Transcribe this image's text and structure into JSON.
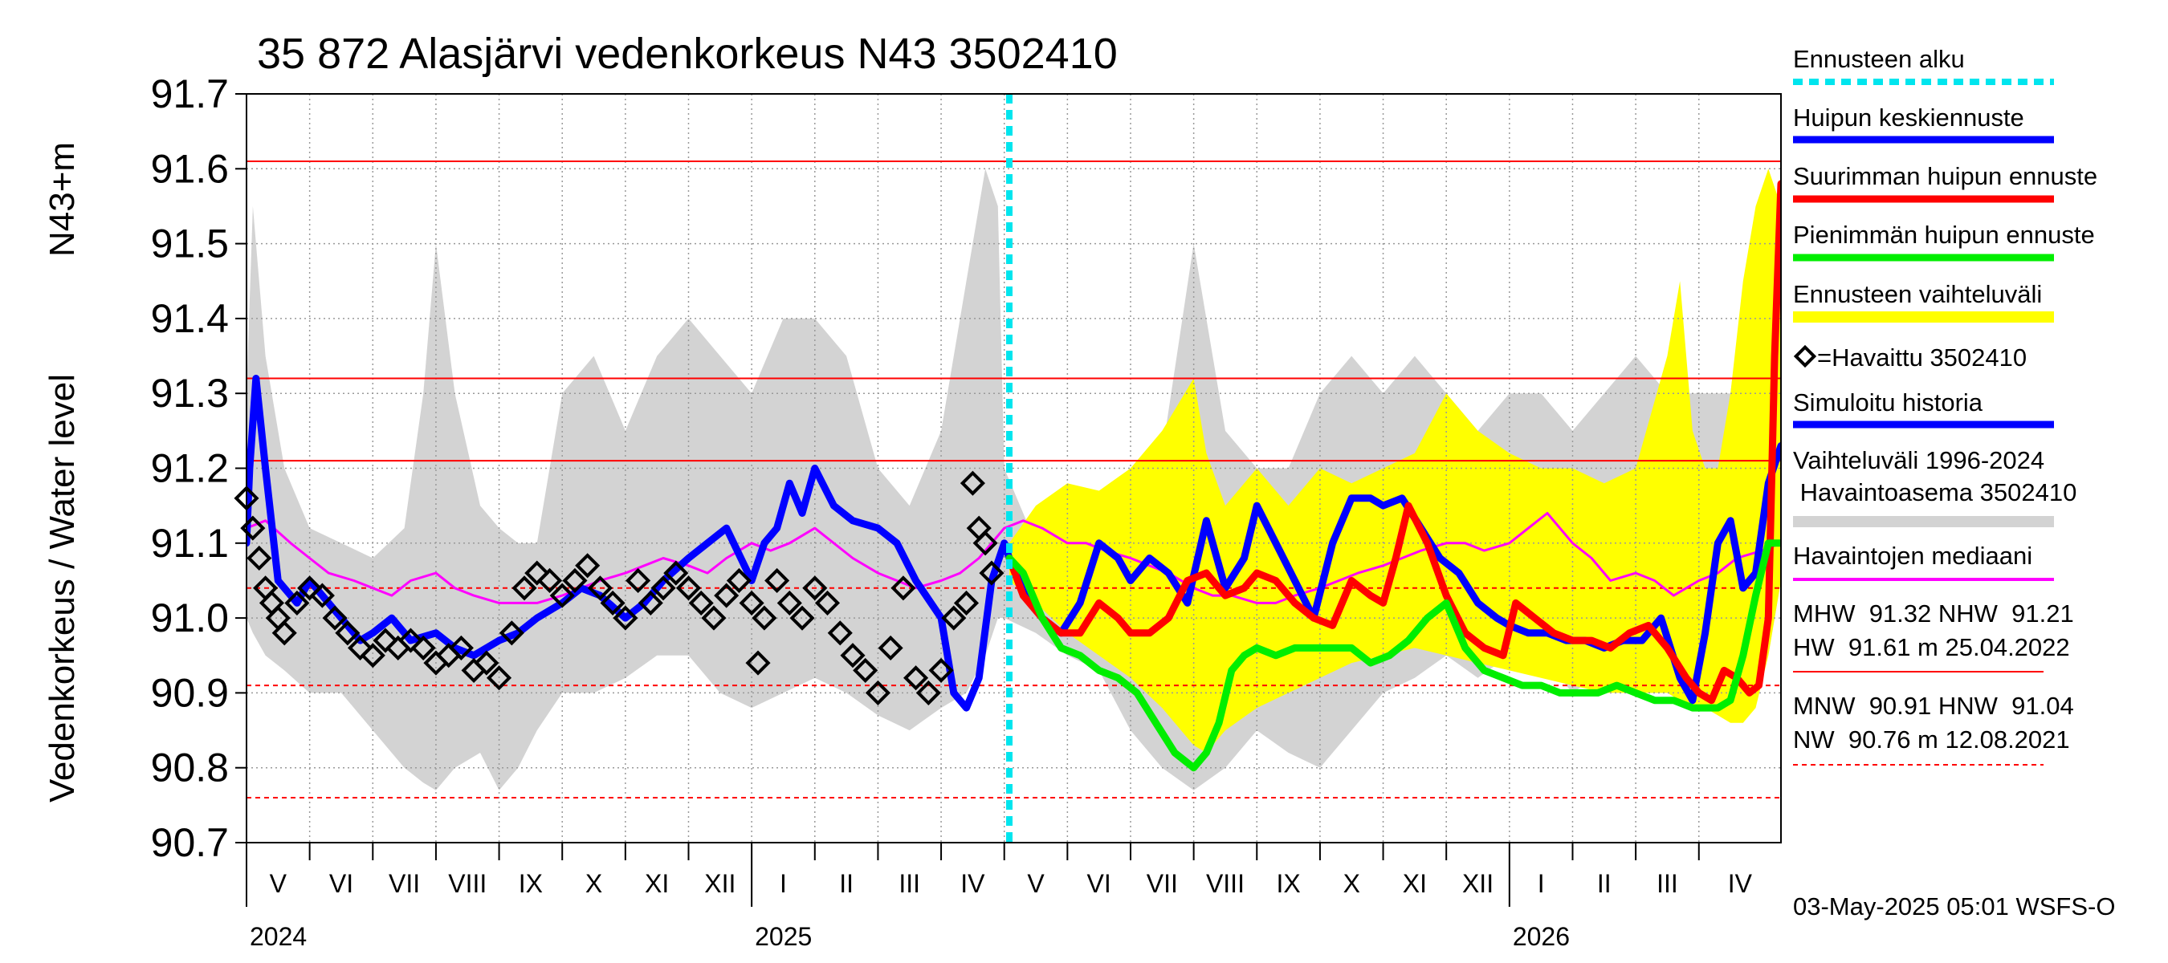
{
  "chart_data": {
    "type": "line",
    "title": "35 872 Alasjärvi vedenkorkeus N43 3502410",
    "ylabel_left": "Vedenkorkeus / Water level",
    "ylabel_right": "N43+m",
    "ylim": [
      90.7,
      91.7
    ],
    "y_ticks": [
      "91.7",
      "91.6",
      "91.5",
      "91.4",
      "91.3",
      "91.2",
      "91.1",
      "91.0",
      "90.9",
      "90.8",
      "90.7"
    ],
    "x_months": [
      {
        "label": "V",
        "start": 0
      },
      {
        "label": "VI",
        "start": 1
      },
      {
        "label": "VII",
        "start": 2
      },
      {
        "label": "VIII",
        "start": 3
      },
      {
        "label": "IX",
        "start": 4
      },
      {
        "label": "X",
        "start": 5
      },
      {
        "label": "XI",
        "start": 6
      },
      {
        "label": "XII",
        "start": 7
      },
      {
        "label": "I",
        "start": 8
      },
      {
        "label": "II",
        "start": 9
      },
      {
        "label": "III",
        "start": 10
      },
      {
        "label": "IV",
        "start": 11
      },
      {
        "label": "V",
        "start": 12
      },
      {
        "label": "VI",
        "start": 13
      },
      {
        "label": "VII",
        "start": 14
      },
      {
        "label": "VIII",
        "start": 15
      },
      {
        "label": "IX",
        "start": 16
      },
      {
        "label": "X",
        "start": 17
      },
      {
        "label": "XI",
        "start": 18
      },
      {
        "label": "XII",
        "start": 19
      },
      {
        "label": "I",
        "start": 20
      },
      {
        "label": "II",
        "start": 21
      },
      {
        "label": "III",
        "start": 22
      },
      {
        "label": "IV",
        "start": 23
      }
    ],
    "x_years": [
      {
        "label": "2024",
        "month": 0
      },
      {
        "label": "2025",
        "month": 8
      },
      {
        "label": "2026",
        "month": 20
      }
    ],
    "x_range_months": [
      0,
      24.3
    ],
    "forecast_start_month": 12.08,
    "reference_lines": [
      {
        "name": "HW",
        "value": 91.61,
        "style": "solid"
      },
      {
        "name": "MHW",
        "value": 91.32,
        "style": "solid"
      },
      {
        "name": "NHW",
        "value": 91.21,
        "style": "solid"
      },
      {
        "name": "HNW",
        "value": 91.04,
        "style": "dashed"
      },
      {
        "name": "MNW",
        "value": 90.91,
        "style": "dashed"
      },
      {
        "name": "NW",
        "value": 90.76,
        "style": "dashed"
      }
    ],
    "series": [
      {
        "name": "Vaihteluväli 1996-2024",
        "type": "band",
        "color": "#d3d3d3",
        "x": [
          0,
          0.1,
          0.3,
          0.6,
          1,
          1.5,
          2,
          2.5,
          2.8,
          3,
          3.3,
          3.7,
          4,
          4.3,
          4.6,
          5,
          5.5,
          6,
          6.5,
          7,
          7.5,
          8,
          8.5,
          9,
          9.5,
          10,
          10.5,
          11,
          11.4,
          11.7,
          11.9,
          12,
          12.5,
          13,
          13.5,
          14,
          14.5,
          15,
          15.5,
          16,
          16.5,
          17,
          17.5,
          18,
          18.5,
          19,
          19.5,
          20,
          20.5,
          21,
          21.5,
          22,
          22.5,
          23,
          23.5,
          23.8,
          24.1,
          24.3
        ],
        "upper": [
          91.3,
          91.55,
          91.35,
          91.2,
          91.12,
          91.1,
          91.08,
          91.12,
          91.3,
          91.5,
          91.3,
          91.15,
          91.12,
          91.1,
          91.1,
          91.3,
          91.35,
          91.25,
          91.35,
          91.4,
          91.35,
          91.3,
          91.4,
          91.4,
          91.35,
          91.2,
          91.15,
          91.25,
          91.45,
          91.6,
          91.55,
          91.2,
          91.1,
          91.1,
          91.1,
          91.15,
          91.22,
          91.5,
          91.25,
          91.2,
          91.2,
          91.3,
          91.35,
          91.3,
          91.35,
          91.3,
          91.25,
          91.3,
          91.3,
          91.25,
          91.3,
          91.35,
          91.3,
          91.3,
          91.3,
          91.5,
          91.6,
          91.4
        ],
        "lower": [
          91.0,
          90.98,
          90.95,
          90.93,
          90.9,
          90.9,
          90.85,
          90.8,
          90.78,
          90.77,
          90.8,
          90.82,
          90.77,
          90.8,
          90.85,
          90.9,
          90.9,
          90.92,
          90.95,
          90.95,
          90.9,
          90.88,
          90.9,
          90.92,
          90.9,
          90.87,
          90.85,
          90.88,
          90.9,
          90.95,
          91.0,
          91.0,
          90.98,
          90.95,
          90.93,
          90.85,
          90.8,
          90.77,
          90.8,
          90.85,
          90.82,
          90.8,
          90.85,
          90.9,
          90.92,
          90.95,
          90.92,
          90.95,
          90.95,
          90.9,
          90.93,
          90.9,
          90.9,
          90.88,
          90.87,
          90.88,
          90.95,
          91.05
        ]
      },
      {
        "name": "Ennusteen vaihteluväli",
        "type": "band",
        "color": "#ffff00",
        "x": [
          12.08,
          12.5,
          13,
          13.5,
          14,
          14.5,
          15,
          15.2,
          15.5,
          16,
          16.5,
          17,
          17.5,
          18,
          18.5,
          19,
          19.5,
          20,
          20.5,
          21,
          21.5,
          22,
          22.5,
          22.7,
          22.9,
          23.1,
          23.3,
          23.5,
          23.7,
          23.9,
          24.1,
          24.3
        ],
        "upper": [
          91.1,
          91.15,
          91.18,
          91.17,
          91.2,
          91.25,
          91.32,
          91.22,
          91.15,
          91.2,
          91.15,
          91.2,
          91.18,
          91.2,
          91.22,
          91.3,
          91.25,
          91.22,
          91.2,
          91.2,
          91.18,
          91.2,
          91.35,
          91.45,
          91.25,
          91.2,
          91.2,
          91.3,
          91.45,
          91.55,
          91.6,
          91.55
        ],
        "lower": [
          91.05,
          91.02,
          90.98,
          90.95,
          90.92,
          90.88,
          90.83,
          90.82,
          90.85,
          90.88,
          90.9,
          90.92,
          90.94,
          90.95,
          90.96,
          90.95,
          90.94,
          90.93,
          90.92,
          90.91,
          90.9,
          90.9,
          90.9,
          90.89,
          90.88,
          90.88,
          90.87,
          90.86,
          90.86,
          90.88,
          90.95,
          91.05
        ]
      },
      {
        "name": "Havaintojen mediaani",
        "type": "line",
        "color": "#ff00ff",
        "x": [
          0,
          0.3,
          0.7,
          1,
          1.3,
          1.7,
          2,
          2.3,
          2.6,
          3,
          3.3,
          3.6,
          4,
          4.3,
          4.6,
          5,
          5.3,
          5.6,
          6,
          6.3,
          6.6,
          7,
          7.3,
          7.6,
          8,
          8.3,
          8.6,
          9,
          9.3,
          9.6,
          10,
          10.3,
          10.6,
          11,
          11.3,
          11.6,
          12,
          12.3,
          12.6,
          13,
          13.3,
          13.6,
          14,
          14.3,
          14.6,
          15,
          15.3,
          15.6,
          16,
          16.3,
          16.6,
          17,
          17.3,
          17.6,
          18,
          18.3,
          18.6,
          19,
          19.3,
          19.6,
          20,
          20.3,
          20.6,
          21,
          21.3,
          21.6,
          22,
          22.3,
          22.6,
          23,
          23.3,
          23.6,
          24,
          24.3
        ],
        "y": [
          91.12,
          91.13,
          91.1,
          91.08,
          91.06,
          91.05,
          91.04,
          91.03,
          91.05,
          91.06,
          91.04,
          91.03,
          91.02,
          91.02,
          91.02,
          91.03,
          91.04,
          91.05,
          91.06,
          91.07,
          91.08,
          91.07,
          91.06,
          91.08,
          91.1,
          91.09,
          91.1,
          91.12,
          91.1,
          91.08,
          91.06,
          91.05,
          91.04,
          91.05,
          91.06,
          91.08,
          91.12,
          91.13,
          91.12,
          91.1,
          91.1,
          91.09,
          91.08,
          91.07,
          91.06,
          91.04,
          91.03,
          91.03,
          91.02,
          91.02,
          91.03,
          91.04,
          91.05,
          91.06,
          91.07,
          91.08,
          91.09,
          91.1,
          91.1,
          91.09,
          91.1,
          91.12,
          91.14,
          91.1,
          91.08,
          91.05,
          91.06,
          91.05,
          91.03,
          91.05,
          91.06,
          91.08,
          91.09,
          91.1
        ]
      },
      {
        "name": "Simuloitu historia",
        "type": "line",
        "color": "#0000ff",
        "x": [
          0,
          0.05,
          0.15,
          0.3,
          0.5,
          0.8,
          1,
          1.2,
          1.5,
          1.8,
          2,
          2.3,
          2.6,
          3,
          3.3,
          3.6,
          4,
          4.3,
          4.6,
          5,
          5.3,
          5.6,
          6,
          6.3,
          6.6,
          7,
          7.3,
          7.6,
          8,
          8.2,
          8.4,
          8.6,
          8.8,
          9,
          9.3,
          9.6,
          10,
          10.3,
          10.6,
          11,
          11.2,
          11.4,
          11.6,
          11.8,
          12,
          12.08
        ],
        "y": [
          91.1,
          91.2,
          91.32,
          91.2,
          91.05,
          91.02,
          91.05,
          91.03,
          91.0,
          90.97,
          90.98,
          91.0,
          90.97,
          90.98,
          90.96,
          90.95,
          90.97,
          90.98,
          91.0,
          91.02,
          91.04,
          91.03,
          91.0,
          91.02,
          91.05,
          91.08,
          91.1,
          91.12,
          91.05,
          91.1,
          91.12,
          91.18,
          91.14,
          91.2,
          91.15,
          91.13,
          91.12,
          91.1,
          91.05,
          91.0,
          90.9,
          90.88,
          90.92,
          91.05,
          91.1,
          91.08
        ]
      },
      {
        "name": "Havaittu 3502410",
        "type": "scatter",
        "color": "#000000",
        "x": [
          0,
          0.1,
          0.2,
          0.3,
          0.4,
          0.5,
          0.6,
          0.8,
          1,
          1.2,
          1.4,
          1.6,
          1.8,
          2,
          2.2,
          2.4,
          2.6,
          2.8,
          3,
          3.2,
          3.4,
          3.6,
          3.8,
          4,
          4.2,
          4.4,
          4.6,
          4.8,
          5,
          5.2,
          5.4,
          5.6,
          5.8,
          6,
          6.2,
          6.4,
          6.6,
          6.8,
          7,
          7.2,
          7.4,
          7.6,
          7.8,
          8,
          8.1,
          8.2,
          8.4,
          8.6,
          8.8,
          9,
          9.2,
          9.4,
          9.6,
          9.8,
          10,
          10.2,
          10.4,
          10.6,
          10.8,
          11,
          11.2,
          11.4,
          11.5,
          11.6,
          11.7,
          11.8
        ],
        "y": [
          91.16,
          91.12,
          91.08,
          91.04,
          91.02,
          91.0,
          90.98,
          91.02,
          91.04,
          91.03,
          91.0,
          90.98,
          90.96,
          90.95,
          90.97,
          90.96,
          90.97,
          90.96,
          90.94,
          90.95,
          90.96,
          90.93,
          90.94,
          90.92,
          90.98,
          91.04,
          91.06,
          91.05,
          91.03,
          91.05,
          91.07,
          91.04,
          91.02,
          91.0,
          91.05,
          91.02,
          91.04,
          91.06,
          91.04,
          91.02,
          91.0,
          91.03,
          91.05,
          91.02,
          90.94,
          91.0,
          91.05,
          91.02,
          91.0,
          91.04,
          91.02,
          90.98,
          90.95,
          90.93,
          90.9,
          90.96,
          91.04,
          90.92,
          90.9,
          90.93,
          91.0,
          91.02,
          91.18,
          91.12,
          91.1,
          91.06
        ]
      },
      {
        "name": "Huipun keskiennuste",
        "type": "line",
        "color": "#0000ff",
        "x": [
          12.08,
          12.3,
          12.6,
          12.9,
          13.2,
          13.5,
          13.8,
          14,
          14.3,
          14.6,
          14.9,
          15.2,
          15.5,
          15.8,
          16,
          16.3,
          16.6,
          16.9,
          17.2,
          17.5,
          17.8,
          18,
          18.3,
          18.6,
          18.9,
          19.2,
          19.5,
          19.8,
          20,
          20.3,
          20.6,
          20.9,
          21.2,
          21.5,
          21.8,
          22.1,
          22.4,
          22.7,
          22.9,
          23.1,
          23.3,
          23.5,
          23.7,
          23.9,
          24.1,
          24.3
        ],
        "y": [
          91.08,
          91.04,
          91.0,
          90.98,
          91.02,
          91.1,
          91.08,
          91.05,
          91.08,
          91.06,
          91.02,
          91.13,
          91.04,
          91.08,
          91.15,
          91.1,
          91.05,
          91.0,
          91.1,
          91.16,
          91.16,
          91.15,
          91.16,
          91.12,
          91.08,
          91.06,
          91.02,
          91.0,
          90.99,
          90.98,
          90.98,
          90.97,
          90.97,
          90.96,
          90.97,
          90.97,
          91.0,
          90.92,
          90.89,
          90.98,
          91.1,
          91.13,
          91.04,
          91.06,
          91.18,
          91.23
        ]
      },
      {
        "name": "Suurimman huipun ennuste",
        "type": "line",
        "color": "#ff0000",
        "x": [
          12.08,
          12.3,
          12.6,
          12.9,
          13.2,
          13.5,
          13.8,
          14,
          14.3,
          14.6,
          14.9,
          15.2,
          15.5,
          15.8,
          16,
          16.3,
          16.6,
          16.9,
          17.2,
          17.5,
          17.8,
          18,
          18.2,
          18.4,
          18.7,
          19,
          19.3,
          19.6,
          19.9,
          20.1,
          20.4,
          20.7,
          21,
          21.3,
          21.6,
          21.9,
          22.2,
          22.5,
          22.8,
          23,
          23.2,
          23.4,
          23.6,
          23.8,
          23.95,
          24.1,
          24.2,
          24.3
        ],
        "y": [
          91.08,
          91.03,
          91.0,
          90.98,
          90.98,
          91.02,
          91.0,
          90.98,
          90.98,
          91.0,
          91.05,
          91.06,
          91.03,
          91.04,
          91.06,
          91.05,
          91.02,
          91.0,
          90.99,
          91.05,
          91.03,
          91.02,
          91.08,
          91.15,
          91.1,
          91.03,
          90.98,
          90.96,
          90.95,
          91.02,
          91.0,
          90.98,
          90.97,
          90.97,
          90.96,
          90.98,
          90.99,
          90.96,
          90.92,
          90.9,
          90.89,
          90.93,
          90.92,
          90.9,
          90.91,
          91.0,
          91.35,
          91.58
        ]
      },
      {
        "name": "Pienimmän huipun ennuste",
        "type": "line",
        "color": "#00ee00",
        "x": [
          12.08,
          12.3,
          12.6,
          12.9,
          13.2,
          13.5,
          13.8,
          14.1,
          14.4,
          14.7,
          15,
          15.2,
          15.4,
          15.6,
          15.8,
          16,
          16.3,
          16.6,
          16.9,
          17.2,
          17.5,
          17.8,
          18.1,
          18.4,
          18.7,
          19,
          19.3,
          19.6,
          19.9,
          20.2,
          20.5,
          20.8,
          21.1,
          21.4,
          21.7,
          22,
          22.3,
          22.6,
          22.9,
          23.1,
          23.3,
          23.5,
          23.7,
          23.9,
          24.1,
          24.3
        ],
        "y": [
          91.08,
          91.06,
          91.0,
          90.96,
          90.95,
          90.93,
          90.92,
          90.9,
          90.86,
          90.82,
          90.8,
          90.82,
          90.86,
          90.93,
          90.95,
          90.96,
          90.95,
          90.96,
          90.96,
          90.96,
          90.96,
          90.94,
          90.95,
          90.97,
          91.0,
          91.02,
          90.96,
          90.93,
          90.92,
          90.91,
          90.91,
          90.9,
          90.9,
          90.9,
          90.91,
          90.9,
          90.89,
          90.89,
          90.88,
          90.88,
          90.88,
          90.89,
          90.95,
          91.03,
          91.1,
          91.1
        ]
      }
    ]
  },
  "legend": {
    "ennusteen_alku": "Ennusteen alku",
    "huipun_keskiennuste": "Huipun keskiennuste",
    "suurimman": "Suurimman huipun ennuste",
    "pienimman": "Pienimmän huipun ennuste",
    "vaihteluvali": "Ennusteen vaihteluväli",
    "havaittu": "=Havaittu 3502410",
    "simuloitu": "Simuloitu historia",
    "vaihteluvali_hist_1": "Vaihteluväli 1996-2024",
    "vaihteluvali_hist_2": " Havaintoasema 3502410",
    "mediaani": "Havaintojen mediaani"
  },
  "stats": {
    "line1": "MHW  91.32 NHW  91.21",
    "line2": "HW  91.61 m 25.04.2022",
    "line3": "MNW  90.91 HNW  91.04",
    "line4": "NW  90.76 m 12.08.2021"
  },
  "footer": "03-May-2025 05:01 WSFS-O",
  "colors": {
    "reference": "#ff0000",
    "forecast_start": "#00e5ee",
    "history_band": "#d3d3d3",
    "forecast_band": "#ffff00",
    "median": "#ff00ff",
    "simulated": "#0000ff",
    "max_forecast": "#ff0000",
    "min_forecast": "#00ee00",
    "observed": "#000000"
  }
}
